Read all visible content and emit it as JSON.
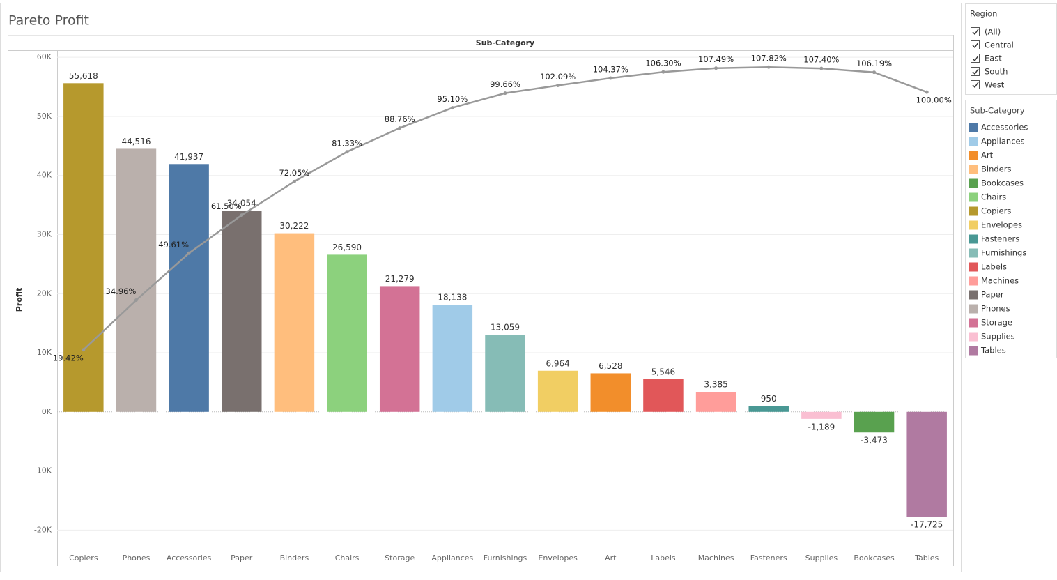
{
  "chart_data": {
    "type": "bar",
    "title": "Pareto Profit",
    "header": "Sub-Category",
    "y_label": "Profit",
    "categories": [
      "Copiers",
      "Phones",
      "Accessories",
      "Paper",
      "Binders",
      "Chairs",
      "Storage",
      "Appliances",
      "Furnishings",
      "Envelopes",
      "Art",
      "Labels",
      "Machines",
      "Fasteners",
      "Supplies",
      "Bookcases",
      "Tables"
    ],
    "values": [
      55618,
      44516,
      41937,
      34054,
      30222,
      26590,
      21279,
      18138,
      13059,
      6964,
      6528,
      5546,
      3385,
      950,
      -1189,
      -3473,
      -17725
    ],
    "value_labels": [
      "55,618",
      "44,516",
      "41,937",
      "34,054",
      "30,222",
      "26,590",
      "21,279",
      "18,138",
      "13,059",
      "6,964",
      "6,528",
      "5,546",
      "3,385",
      "950",
      "-1,189",
      "-3,473",
      "-17,725"
    ],
    "line": {
      "type": "line",
      "axis": "y2",
      "color": "#999999",
      "values": [
        19.42,
        34.96,
        49.61,
        61.5,
        72.05,
        81.33,
        88.76,
        95.1,
        99.66,
        102.09,
        104.37,
        106.3,
        107.49,
        107.82,
        107.4,
        106.19,
        100.0
      ],
      "value_labels": [
        "19.42%",
        "34.96%",
        "49.61%",
        "61.50%",
        "72.05%",
        "81.33%",
        "88.76%",
        "95.10%",
        "99.66%",
        "102.09%",
        "104.37%",
        "106.30%",
        "107.49%",
        "107.82%",
        "107.40%",
        "106.19%",
        "100.00%"
      ]
    },
    "ylim": [
      -23500,
      61200
    ],
    "y2lim": [
      -43.4,
      113.1
    ],
    "yticks": [
      {
        "value": -20000,
        "label": "-20K"
      },
      {
        "value": -10000,
        "label": "-10K"
      },
      {
        "value": 0,
        "label": "0K"
      },
      {
        "value": 10000,
        "label": "10K"
      },
      {
        "value": 20000,
        "label": "20K"
      },
      {
        "value": 30000,
        "label": "30K"
      },
      {
        "value": 40000,
        "label": "40K"
      },
      {
        "value": 50000,
        "label": "50K"
      },
      {
        "value": 60000,
        "label": "60K"
      }
    ],
    "grid": true,
    "legend": {
      "title": "Sub-Category",
      "items": [
        {
          "name": "Accessories",
          "color": "#4e79a7"
        },
        {
          "name": "Appliances",
          "color": "#a0cbe8"
        },
        {
          "name": "Art",
          "color": "#f28e2b"
        },
        {
          "name": "Binders",
          "color": "#ffbe7d"
        },
        {
          "name": "Bookcases",
          "color": "#59a14f"
        },
        {
          "name": "Chairs",
          "color": "#8cd17d"
        },
        {
          "name": "Copiers",
          "color": "#b6992d"
        },
        {
          "name": "Envelopes",
          "color": "#f1ce63"
        },
        {
          "name": "Fasteners",
          "color": "#499894"
        },
        {
          "name": "Furnishings",
          "color": "#86bcb6"
        },
        {
          "name": "Labels",
          "color": "#e15759"
        },
        {
          "name": "Machines",
          "color": "#ff9d9a"
        },
        {
          "name": "Paper",
          "color": "#79706e"
        },
        {
          "name": "Phones",
          "color": "#bab0ac"
        },
        {
          "name": "Storage",
          "color": "#d37295"
        },
        {
          "name": "Supplies",
          "color": "#fabfd2"
        },
        {
          "name": "Tables",
          "color": "#b07aa1"
        }
      ]
    }
  },
  "filter": {
    "title": "Region",
    "options": [
      "(All)",
      "Central",
      "East",
      "South",
      "West"
    ]
  }
}
